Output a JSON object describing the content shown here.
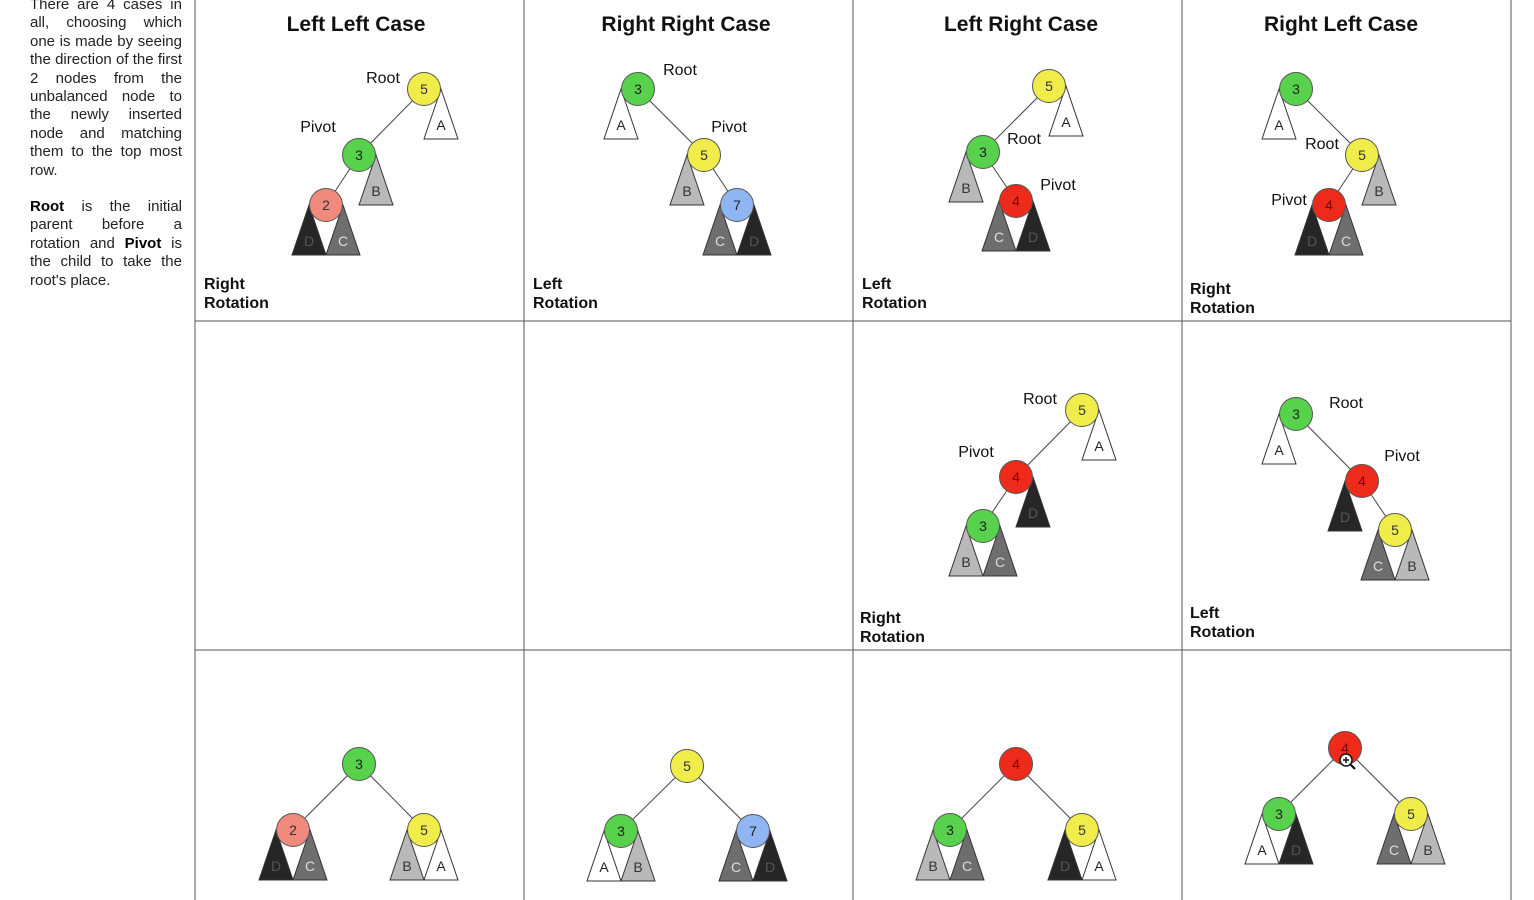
{
  "intro": {
    "p1": "There are 4 cases in all, choosing which one is made by seeing the direction of the first 2 nodes from the unbalanced node to the newly inserted node and matching them to the top most row.",
    "p2_root": "Root",
    "p2_mid1": " is the initial parent before a rotation and ",
    "p2_pivot": "Pivot",
    "p2_end": " is the child to take the root's place."
  },
  "colors": {
    "yellow": "#f0ec4a",
    "green": "#58d14c",
    "salmon": "#f08a7c",
    "blue": "#8fb6f2",
    "red": "#ee2a1a",
    "subtree_white": "#ffffff",
    "subtree_light": "#b9b9b9",
    "subtree_mid": "#6e6e6e",
    "subtree_dark": "#262626"
  },
  "cases": [
    {
      "title": "Left Left Case",
      "diagrams": [
        {
          "nodes": [
            {
              "id": "5",
              "label": "5",
              "color": "yellow"
            },
            {
              "id": "3",
              "label": "3",
              "color": "green"
            },
            {
              "id": "2",
              "label": "2",
              "color": "salmon"
            }
          ],
          "subtrees": [
            {
              "label": "A",
              "shade": "white"
            },
            {
              "label": "B",
              "shade": "light"
            },
            {
              "label": "D",
              "shade": "dark"
            },
            {
              "label": "C",
              "shade": "mid"
            }
          ],
          "roles": [
            "Root",
            "Pivot"
          ],
          "rotation": [
            "Right",
            "Rotation"
          ]
        },
        null,
        {
          "nodes": [
            {
              "id": "3",
              "label": "3",
              "color": "green"
            },
            {
              "id": "2",
              "label": "2",
              "color": "salmon"
            },
            {
              "id": "5",
              "label": "5",
              "color": "yellow"
            }
          ],
          "subtrees": [
            {
              "label": "D",
              "shade": "dark"
            },
            {
              "label": "C",
              "shade": "mid"
            },
            {
              "label": "B",
              "shade": "light"
            },
            {
              "label": "A",
              "shade": "white"
            }
          ],
          "roles": [],
          "rotation": []
        }
      ]
    },
    {
      "title": "Right Right Case",
      "diagrams": [
        {
          "nodes": [
            {
              "id": "3",
              "label": "3",
              "color": "green"
            },
            {
              "id": "5",
              "label": "5",
              "color": "yellow"
            },
            {
              "id": "7",
              "label": "7",
              "color": "blue"
            }
          ],
          "subtrees": [
            {
              "label": "A",
              "shade": "white"
            },
            {
              "label": "B",
              "shade": "light"
            },
            {
              "label": "C",
              "shade": "mid"
            },
            {
              "label": "D",
              "shade": "dark"
            }
          ],
          "roles": [
            "Root",
            "Pivot"
          ],
          "rotation": [
            "Left",
            "Rotation"
          ]
        },
        null,
        {
          "nodes": [
            {
              "id": "5",
              "label": "5",
              "color": "yellow"
            },
            {
              "id": "3",
              "label": "3",
              "color": "green"
            },
            {
              "id": "7",
              "label": "7",
              "color": "blue"
            }
          ],
          "subtrees": [
            {
              "label": "A",
              "shade": "white"
            },
            {
              "label": "B",
              "shade": "light"
            },
            {
              "label": "C",
              "shade": "mid"
            },
            {
              "label": "D",
              "shade": "dark"
            }
          ],
          "roles": [],
          "rotation": []
        }
      ]
    },
    {
      "title": "Left Right Case",
      "diagrams": [
        {
          "nodes": [
            {
              "id": "5",
              "label": "5",
              "color": "yellow"
            },
            {
              "id": "3",
              "label": "3",
              "color": "green"
            },
            {
              "id": "4",
              "label": "4",
              "color": "red"
            }
          ],
          "subtrees": [
            {
              "label": "A",
              "shade": "white"
            },
            {
              "label": "B",
              "shade": "light"
            },
            {
              "label": "C",
              "shade": "mid"
            },
            {
              "label": "D",
              "shade": "dark"
            }
          ],
          "roles": [
            "Root",
            "Pivot"
          ],
          "rotation": [
            "Left",
            "Rotation"
          ]
        },
        {
          "nodes": [
            {
              "id": "5",
              "label": "5",
              "color": "yellow"
            },
            {
              "id": "4",
              "label": "4",
              "color": "red"
            },
            {
              "id": "3",
              "label": "3",
              "color": "green"
            }
          ],
          "subtrees": [
            {
              "label": "A",
              "shade": "white"
            },
            {
              "label": "D",
              "shade": "dark"
            },
            {
              "label": "B",
              "shade": "light"
            },
            {
              "label": "C",
              "shade": "mid"
            }
          ],
          "roles": [
            "Root",
            "Pivot"
          ],
          "rotation": [
            "Right",
            "Rotation"
          ]
        },
        {
          "nodes": [
            {
              "id": "4",
              "label": "4",
              "color": "red"
            },
            {
              "id": "3",
              "label": "3",
              "color": "green"
            },
            {
              "id": "5",
              "label": "5",
              "color": "yellow"
            }
          ],
          "subtrees": [
            {
              "label": "B",
              "shade": "light"
            },
            {
              "label": "C",
              "shade": "mid"
            },
            {
              "label": "D",
              "shade": "dark"
            },
            {
              "label": "A",
              "shade": "white"
            }
          ],
          "roles": [],
          "rotation": []
        }
      ]
    },
    {
      "title": "Right Left Case",
      "diagrams": [
        {
          "nodes": [
            {
              "id": "3",
              "label": "3",
              "color": "green"
            },
            {
              "id": "5",
              "label": "5",
              "color": "yellow"
            },
            {
              "id": "4",
              "label": "4",
              "color": "red"
            }
          ],
          "subtrees": [
            {
              "label": "A",
              "shade": "white"
            },
            {
              "label": "B",
              "shade": "light"
            },
            {
              "label": "D",
              "shade": "dark"
            },
            {
              "label": "C",
              "shade": "mid"
            }
          ],
          "roles": [
            "Root",
            "Pivot"
          ],
          "rotation": [
            "Right",
            "Rotation"
          ]
        },
        {
          "nodes": [
            {
              "id": "3",
              "label": "3",
              "color": "green"
            },
            {
              "id": "4",
              "label": "4",
              "color": "red"
            },
            {
              "id": "5",
              "label": "5",
              "color": "yellow"
            }
          ],
          "subtrees": [
            {
              "label": "A",
              "shade": "white"
            },
            {
              "label": "D",
              "shade": "dark"
            },
            {
              "label": "C",
              "shade": "mid"
            },
            {
              "label": "B",
              "shade": "light"
            }
          ],
          "roles": [
            "Root",
            "Pivot"
          ],
          "rotation": [
            "Left",
            "Rotation"
          ]
        },
        {
          "nodes": [
            {
              "id": "4",
              "label": "4",
              "color": "red"
            },
            {
              "id": "3",
              "label": "3",
              "color": "green"
            },
            {
              "id": "5",
              "label": "5",
              "color": "yellow"
            }
          ],
          "subtrees": [
            {
              "label": "A",
              "shade": "white"
            },
            {
              "label": "D",
              "shade": "dark"
            },
            {
              "label": "C",
              "shade": "mid"
            },
            {
              "label": "B",
              "shade": "light"
            }
          ],
          "roles": [],
          "rotation": []
        }
      ]
    }
  ]
}
